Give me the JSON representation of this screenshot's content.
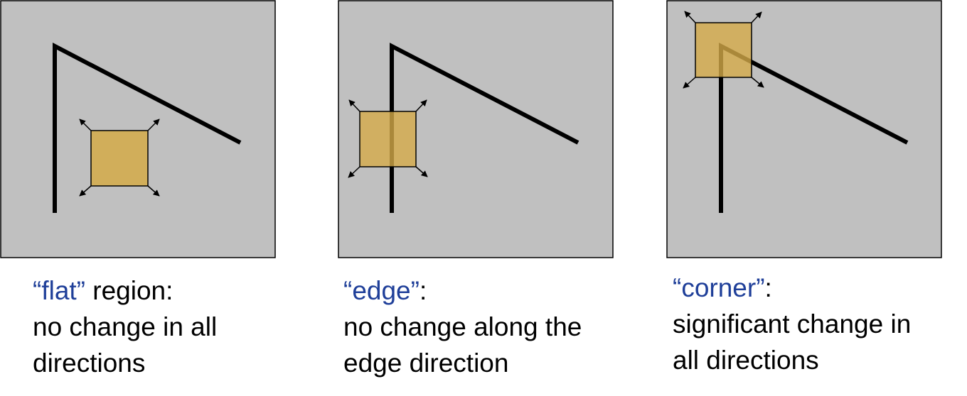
{
  "colors": {
    "background": "#c0c0c0",
    "border": "#000000",
    "window_fill": "#d4aa48",
    "keyword": "#1f3f99",
    "text": "#000000"
  },
  "panels": [
    {
      "keyword": "“flat”",
      "suffix": " region:",
      "line2": "no change in all",
      "line3": "directions"
    },
    {
      "keyword": "“edge”",
      "suffix": ":",
      "line2": "no change along the",
      "line3": "edge direction"
    },
    {
      "keyword": "“corner”",
      "suffix": ":",
      "line2": "significant change in",
      "line3": "all directions"
    }
  ]
}
